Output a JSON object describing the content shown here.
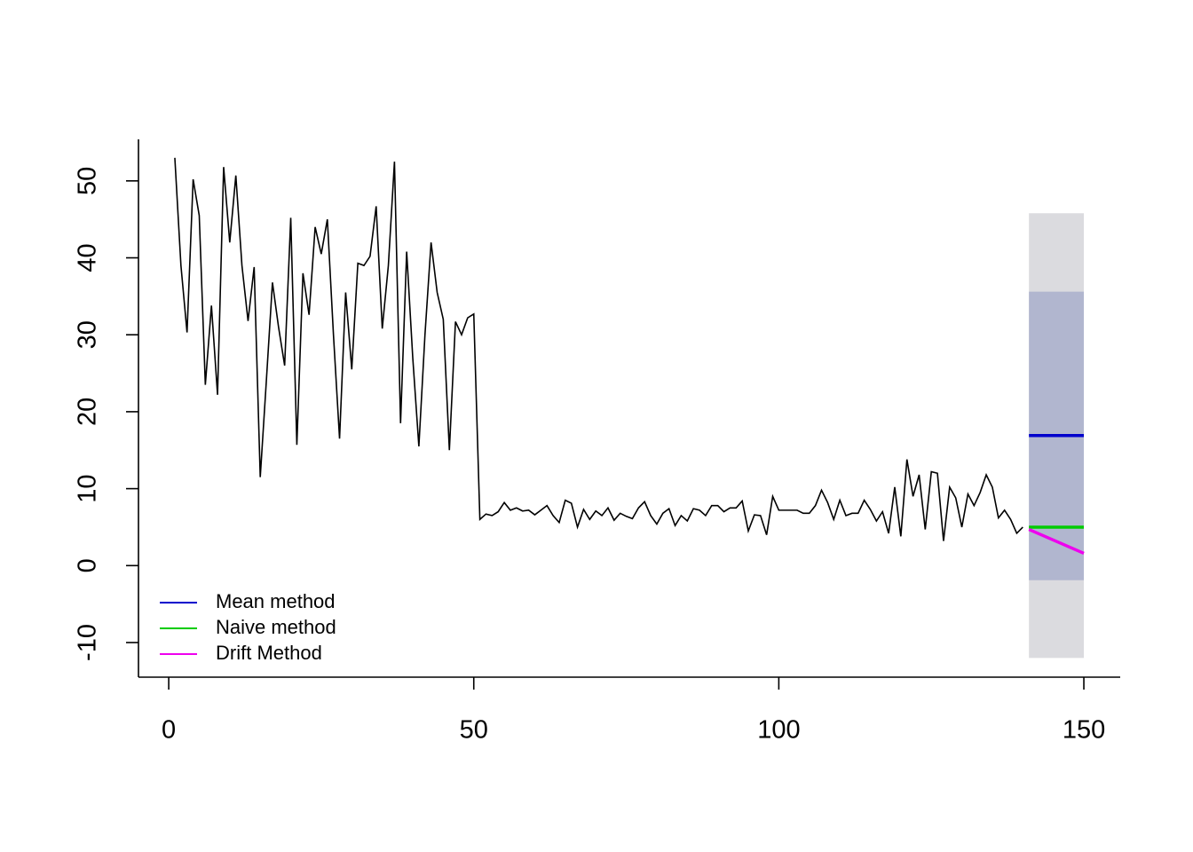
{
  "chart_data": {
    "type": "line",
    "x": [
      1,
      2,
      3,
      4,
      5,
      6,
      7,
      8,
      9,
      10,
      11,
      12,
      13,
      14,
      15,
      16,
      17,
      18,
      19,
      20,
      21,
      22,
      23,
      24,
      25,
      26,
      27,
      28,
      29,
      30,
      31,
      32,
      33,
      34,
      35,
      36,
      37,
      38,
      39,
      40,
      41,
      42,
      43,
      44,
      45,
      46,
      47,
      48,
      49,
      50,
      51,
      52,
      53,
      54,
      55,
      56,
      57,
      58,
      59,
      60,
      61,
      62,
      63,
      64,
      65,
      66,
      67,
      68,
      69,
      70,
      71,
      72,
      73,
      74,
      75,
      76,
      77,
      78,
      79,
      80,
      81,
      82,
      83,
      84,
      85,
      86,
      87,
      88,
      89,
      90,
      91,
      92,
      93,
      94,
      95,
      96,
      97,
      98,
      99,
      100,
      101,
      102,
      103,
      104,
      105,
      106,
      107,
      108,
      109,
      110,
      111,
      112,
      113,
      114,
      115,
      116,
      117,
      118,
      119,
      120,
      121,
      122,
      123,
      124,
      125,
      126,
      127,
      128,
      129,
      130,
      131,
      132,
      133,
      134,
      135,
      136,
      137,
      138,
      139,
      140
    ],
    "values": [
      53,
      39,
      30.3,
      50.2,
      45.5,
      23.5,
      33.8,
      22.2,
      51.8,
      42,
      50.7,
      39,
      31.8,
      38.8,
      11.5,
      24,
      36.8,
      31,
      26,
      45.2,
      15.7,
      38,
      32.6,
      44,
      40.5,
      45,
      30,
      16.5,
      35.5,
      25.5,
      39.3,
      39,
      40.2,
      46.7,
      30.8,
      39,
      52.5,
      18.5,
      40.8,
      27,
      15.5,
      30,
      42,
      35.5,
      32,
      15,
      31.7,
      30,
      32.2,
      32.7,
      6,
      6.7,
      6.5,
      7,
      8.2,
      7.2,
      7.5,
      7.1,
      7.2,
      6.6,
      7.2,
      7.8,
      6.5,
      5.6,
      8.5,
      8.1,
      5,
      7.3,
      6,
      7.1,
      6.5,
      7.5,
      5.9,
      6.8,
      6.4,
      6.1,
      7.5,
      8.3,
      6.5,
      5.4,
      6.8,
      7.4,
      5.2,
      6.5,
      5.8,
      7.4,
      7.2,
      6.5,
      7.8,
      7.8,
      7,
      7.5,
      7.5,
      8.4,
      4.5,
      6.6,
      6.5,
      4,
      9,
      7.2,
      7.2,
      7.2,
      7.2,
      6.8,
      6.8,
      7.8,
      9.8,
      8.2,
      6,
      8.5,
      6.5,
      6.8,
      6.8,
      8.5,
      7.3,
      5.8,
      7,
      4.2,
      10.2,
      3.8,
      13.8,
      9,
      11.8,
      4.7,
      12.2,
      12,
      3.2,
      10.2,
      8.8,
      5,
      9.3,
      7.8,
      9.5,
      11.8,
      10.2,
      6.2,
      7.2,
      6,
      4.2,
      5
    ],
    "color": "#000000",
    "bands": [
      {
        "x": [
          141,
          150
        ],
        "lower": [
          -12,
          -12
        ],
        "upper": [
          45.8,
          45.8
        ],
        "color": "#dbdbdf"
      },
      {
        "x": [
          141,
          150
        ],
        "lower": [
          -1.9,
          -1.9
        ],
        "upper": [
          35.6,
          35.6
        ],
        "color": "#b1b6cf"
      }
    ],
    "series": [
      {
        "name": "Mean method",
        "color": "#0000cc",
        "x": [
          141,
          150
        ],
        "values": [
          16.9,
          16.9
        ]
      },
      {
        "name": "Naive method",
        "color": "#00cc00",
        "x": [
          141,
          150
        ],
        "values": [
          5,
          5
        ]
      },
      {
        "name": "Drift Method",
        "color": "#ee00ee",
        "x": [
          141,
          150
        ],
        "values": [
          4.7,
          1.6
        ]
      }
    ],
    "xlim": [
      -4.96,
      155.96
    ],
    "xticks": [
      0,
      50,
      100,
      150
    ],
    "ylim": [
      -14.5,
      55.4
    ],
    "yticks": [
      -10,
      0,
      10,
      20,
      30,
      40,
      50
    ],
    "legend": "bottom-left"
  }
}
